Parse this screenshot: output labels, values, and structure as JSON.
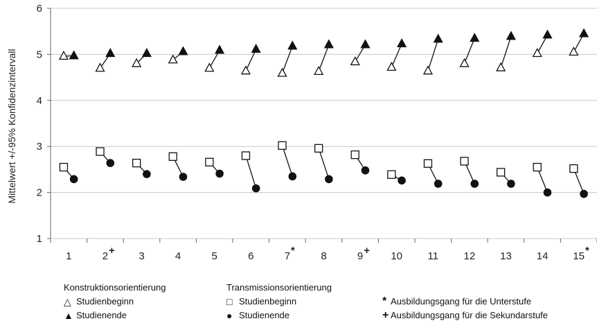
{
  "chart_data": {
    "type": "scatter",
    "ylabel": "Mittelwert +/-95% Konfidenzintervall",
    "xlabel": "",
    "ylim": [
      1,
      6
    ],
    "yticks": [
      1,
      2,
      3,
      4,
      5,
      6
    ],
    "grid": true,
    "categories": [
      "1",
      "2",
      "3",
      "4",
      "5",
      "6",
      "7",
      "8",
      "9",
      "10",
      "11",
      "12",
      "13",
      "14",
      "15"
    ],
    "category_marks": [
      "",
      "+",
      "",
      "",
      "",
      "",
      "*",
      "",
      "+",
      "",
      "",
      "",
      "",
      "",
      "*"
    ],
    "series": [
      {
        "name": "Konstruktionsorientierung Studienbeginn",
        "symbol": "triangle-open",
        "values": [
          4.96,
          4.7,
          4.8,
          4.88,
          4.7,
          4.64,
          4.59,
          4.63,
          4.84,
          4.72,
          4.64,
          4.8,
          4.71,
          5.02,
          5.05
        ]
      },
      {
        "name": "Konstruktionsorientierung Studienende",
        "symbol": "triangle-filled",
        "values": [
          4.97,
          5.02,
          5.02,
          5.06,
          5.09,
          5.11,
          5.18,
          5.21,
          5.21,
          5.23,
          5.33,
          5.35,
          5.39,
          5.42,
          5.45
        ]
      },
      {
        "name": "Transmissionsorientierung Studienbeginn",
        "symbol": "square-open",
        "values": [
          2.55,
          2.89,
          2.64,
          2.78,
          2.66,
          2.8,
          3.02,
          2.96,
          2.82,
          2.39,
          2.63,
          2.68,
          2.44,
          2.55,
          2.52
        ]
      },
      {
        "name": "Transmissionsorientierung Studienende",
        "symbol": "circle-filled",
        "values": [
          2.29,
          2.64,
          2.4,
          2.34,
          2.41,
          2.09,
          2.35,
          2.29,
          2.48,
          2.26,
          2.19,
          2.19,
          2.19,
          2.0,
          1.97
        ]
      }
    ]
  },
  "legend": {
    "konstruktion": {
      "title": "Konstruktionsorientierung",
      "begin": "Studienbeginn",
      "end": "Studienende"
    },
    "transmission": {
      "title": "Transmissionsorientierung",
      "begin": "Studienbeginn",
      "end": "Studienende"
    },
    "notes": [
      {
        "mark": "*",
        "text": "Ausbildungsgang für die Unterstufe"
      },
      {
        "mark": "+",
        "text": "Ausbildungsgang für die Sekundarstufe"
      }
    ]
  }
}
